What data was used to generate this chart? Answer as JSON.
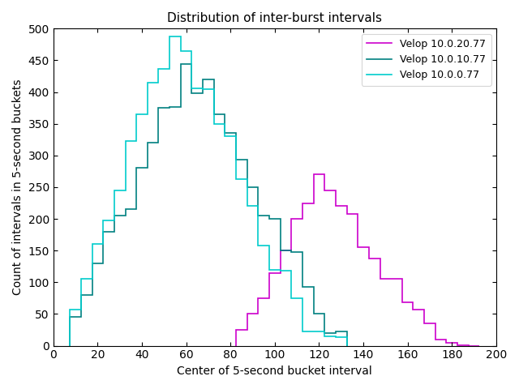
{
  "title": "Distribution of inter-burst intervals",
  "xlabel": "Center of 5-second bucket interval",
  "ylabel": "Count of intervals in 5-second buckets",
  "xlim": [
    0,
    200
  ],
  "ylim": [
    0,
    500
  ],
  "xticks": [
    0,
    20,
    40,
    60,
    80,
    100,
    120,
    140,
    160,
    180,
    200
  ],
  "yticks": [
    0,
    50,
    100,
    150,
    200,
    250,
    300,
    350,
    400,
    450,
    500
  ],
  "series": [
    {
      "label": "Velop 10.0.20.77",
      "color": "#cc00cc",
      "centers": [
        85,
        90,
        95,
        100,
        105,
        110,
        115,
        120,
        125,
        130,
        135,
        140,
        145,
        150,
        155,
        160,
        165,
        170,
        175,
        180,
        185,
        190
      ],
      "values": [
        25,
        50,
        75,
        115,
        150,
        200,
        225,
        270,
        245,
        220,
        208,
        155,
        138,
        105,
        105,
        68,
        57,
        35,
        10,
        5,
        1,
        0
      ]
    },
    {
      "label": "Velop 10.0.10.77",
      "color": "#008080",
      "centers": [
        10,
        15,
        20,
        25,
        30,
        35,
        40,
        45,
        50,
        55,
        60,
        65,
        70,
        75,
        80,
        85,
        90,
        95,
        100,
        105,
        110,
        115,
        120,
        125,
        130
      ],
      "values": [
        45,
        80,
        130,
        180,
        205,
        215,
        280,
        320,
        375,
        376,
        444,
        398,
        420,
        365,
        335,
        293,
        250,
        205,
        200,
        150,
        148,
        93,
        50,
        20,
        22
      ]
    },
    {
      "label": "Velop 10.0.0.77",
      "color": "#00cccc",
      "centers": [
        10,
        15,
        20,
        25,
        30,
        35,
        40,
        45,
        50,
        55,
        60,
        65,
        70,
        75,
        80,
        85,
        90,
        95,
        100,
        105,
        110,
        115,
        120,
        125,
        130
      ],
      "values": [
        57,
        105,
        160,
        197,
        245,
        323,
        365,
        415,
        437,
        488,
        465,
        406,
        405,
        350,
        330,
        263,
        220,
        158,
        120,
        118,
        75,
        22,
        22,
        15,
        13
      ]
    }
  ]
}
